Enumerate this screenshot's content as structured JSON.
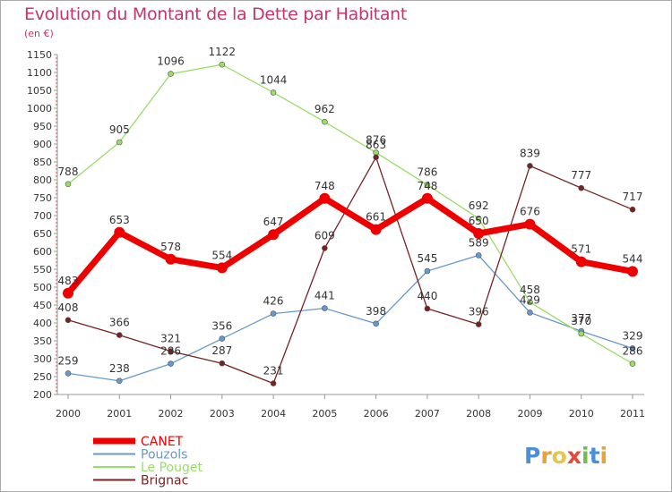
{
  "chart_data": {
    "type": "line",
    "title": "Evolution du Montant de la Dette par Habitant",
    "subtitle": "(en €)",
    "xlabel": "",
    "ylabel": "",
    "x": [
      "2000",
      "2001",
      "2002",
      "2003",
      "2004",
      "2005",
      "2006",
      "2007",
      "2008",
      "2009",
      "2010",
      "2011"
    ],
    "ylim": [
      200,
      1150
    ],
    "yticks": [
      200,
      250,
      300,
      350,
      400,
      450,
      500,
      550,
      600,
      650,
      700,
      750,
      800,
      850,
      900,
      950,
      1000,
      1050,
      1100,
      1150
    ],
    "grid": false,
    "legend_position": "bottom-left",
    "series": [
      {
        "name": "CANET",
        "color": "#ee0000",
        "values": [
          483,
          653,
          578,
          554,
          647,
          748,
          661,
          748,
          650,
          676,
          571,
          544
        ]
      },
      {
        "name": "Pouzols",
        "color": "#6699cc",
        "values": [
          259,
          238,
          286,
          356,
          426,
          441,
          398,
          545,
          589,
          429,
          377,
          329
        ]
      },
      {
        "name": "Le Pouget",
        "color": "#99dd66",
        "values": [
          788,
          905,
          1096,
          1122,
          1044,
          962,
          876,
          786,
          692,
          458,
          370,
          286
        ]
      },
      {
        "name": "Brignac",
        "color": "#772222",
        "values": [
          408,
          366,
          321,
          287,
          231,
          609,
          863,
          440,
          396,
          839,
          777,
          717
        ]
      }
    ]
  },
  "logo": {
    "text": "Proxiti"
  }
}
